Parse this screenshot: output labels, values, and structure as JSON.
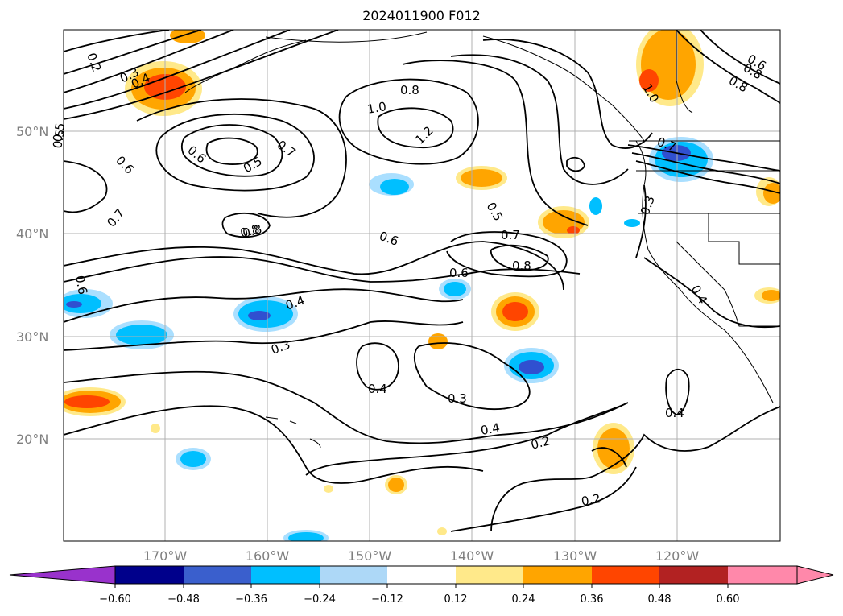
{
  "title": "2024011900 F012",
  "map": {
    "lat_labels": [
      "50°N",
      "40°N",
      "30°N",
      "20°N"
    ],
    "lon_labels": [
      "170°W",
      "160°W",
      "150°W",
      "140°W",
      "130°W",
      "120°W"
    ],
    "contour_labels": [
      "0.2",
      "0.3",
      "0.4",
      "0.5",
      "0.6",
      "0.7",
      "0.8",
      "1.0",
      "1.2",
      "0.8",
      "0.7",
      "0.6",
      "0.5",
      "0.5",
      "0.6",
      "0.7",
      "0.8",
      "0.4",
      "0.3",
      "0.4",
      "0.3",
      "0.4",
      "0.2",
      "0.2",
      "0.4",
      "0.3",
      "0.6",
      "0.8",
      "1.0",
      "0.6",
      "0.8",
      "0.4",
      "0.6",
      "0.5",
      "0.7",
      "0.8"
    ],
    "colors": {
      "neg_strong": "#000090",
      "neg_mid": "#3050d0",
      "neg_light": "#00bfff",
      "neg_pale": "#aadfff",
      "pos_pale": "#ffe98a",
      "pos_light": "#ffa500",
      "pos_mid": "#ff4500",
      "pos_strong": "#b22222"
    }
  },
  "colorbar": {
    "ticks": [
      "−0.60",
      "−0.48",
      "−0.36",
      "−0.24",
      "−0.12",
      "0.12",
      "0.24",
      "0.36",
      "0.48",
      "0.60"
    ],
    "colors": [
      "#9932cc",
      "#00008b",
      "#3a5fcd",
      "#00bfff",
      "#add8f7",
      "#ffffff",
      "#ffe98a",
      "#ffa500",
      "#ff4500",
      "#b22222",
      "#ff88aa"
    ]
  }
}
